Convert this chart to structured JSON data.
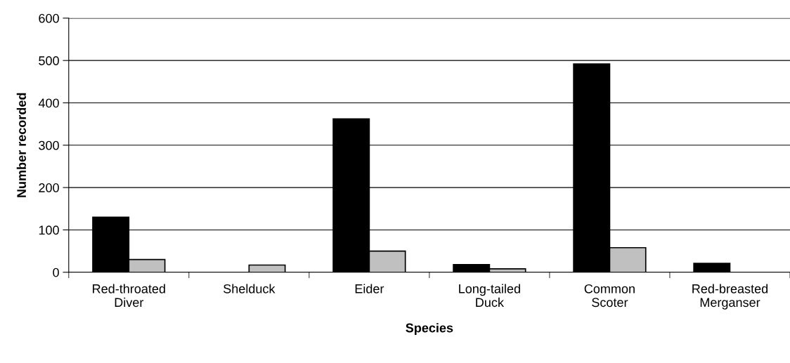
{
  "chart_data": {
    "type": "bar",
    "xlabel": "Species",
    "ylabel": "Number recorded",
    "categories": [
      "Red-throated\nDiver",
      "Shelduck",
      "Eider",
      "Long-tailed\nDuck",
      "Common\nScoter",
      "Red-breasted\nMerganser"
    ],
    "series": [
      {
        "color": "#000000",
        "values": [
          130,
          null,
          362,
          18,
          492,
          21
        ]
      },
      {
        "color": "#c0c0c0",
        "values": [
          30,
          17,
          50,
          8,
          58,
          null
        ]
      }
    ],
    "ylim": [
      0,
      600
    ],
    "yticks": [
      0,
      100,
      200,
      300,
      400,
      500,
      600
    ],
    "grid": "y",
    "legend": false
  }
}
